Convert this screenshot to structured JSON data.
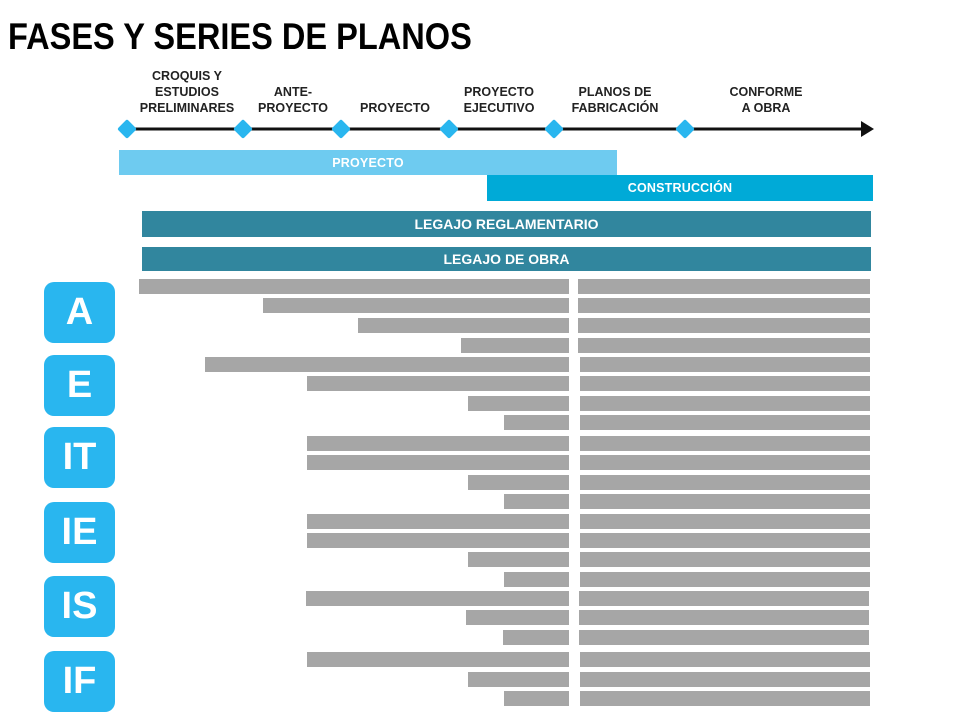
{
  "title": "FASES Y SERIES DE PLANOS",
  "colors": {
    "timeline_marker": "#29b6ef",
    "proyecto_band": "#6ecbf0",
    "construccion_band": "#00aad7",
    "legajo": "#31869e",
    "bar": "#a6a6a6",
    "series_badge": "#29b6ef"
  },
  "phases": [
    {
      "label": "CROQUIS Y\nESTUDIOS\nPRELIMINARES"
    },
    {
      "label": "ANTE-\nPROYECTO"
    },
    {
      "label": "PROYECTO"
    },
    {
      "label": "PROYECTO\nEJECUTIVO"
    },
    {
      "label": "PLANOS DE\nFABRICACIÓN"
    },
    {
      "label": "CONFORME\nA OBRA"
    }
  ],
  "bands": {
    "proyecto": "PROYECTO",
    "construccion": "CONSTRUCCIÓN"
  },
  "legajos": {
    "reglamentario": "LEGAJO REGLAMENTARIO",
    "obra": "LEGAJO DE OBRA"
  },
  "series": [
    {
      "code": "A"
    },
    {
      "code": "E"
    },
    {
      "code": "IT"
    },
    {
      "code": "IE"
    },
    {
      "code": "IS"
    },
    {
      "code": "IF"
    }
  ]
}
